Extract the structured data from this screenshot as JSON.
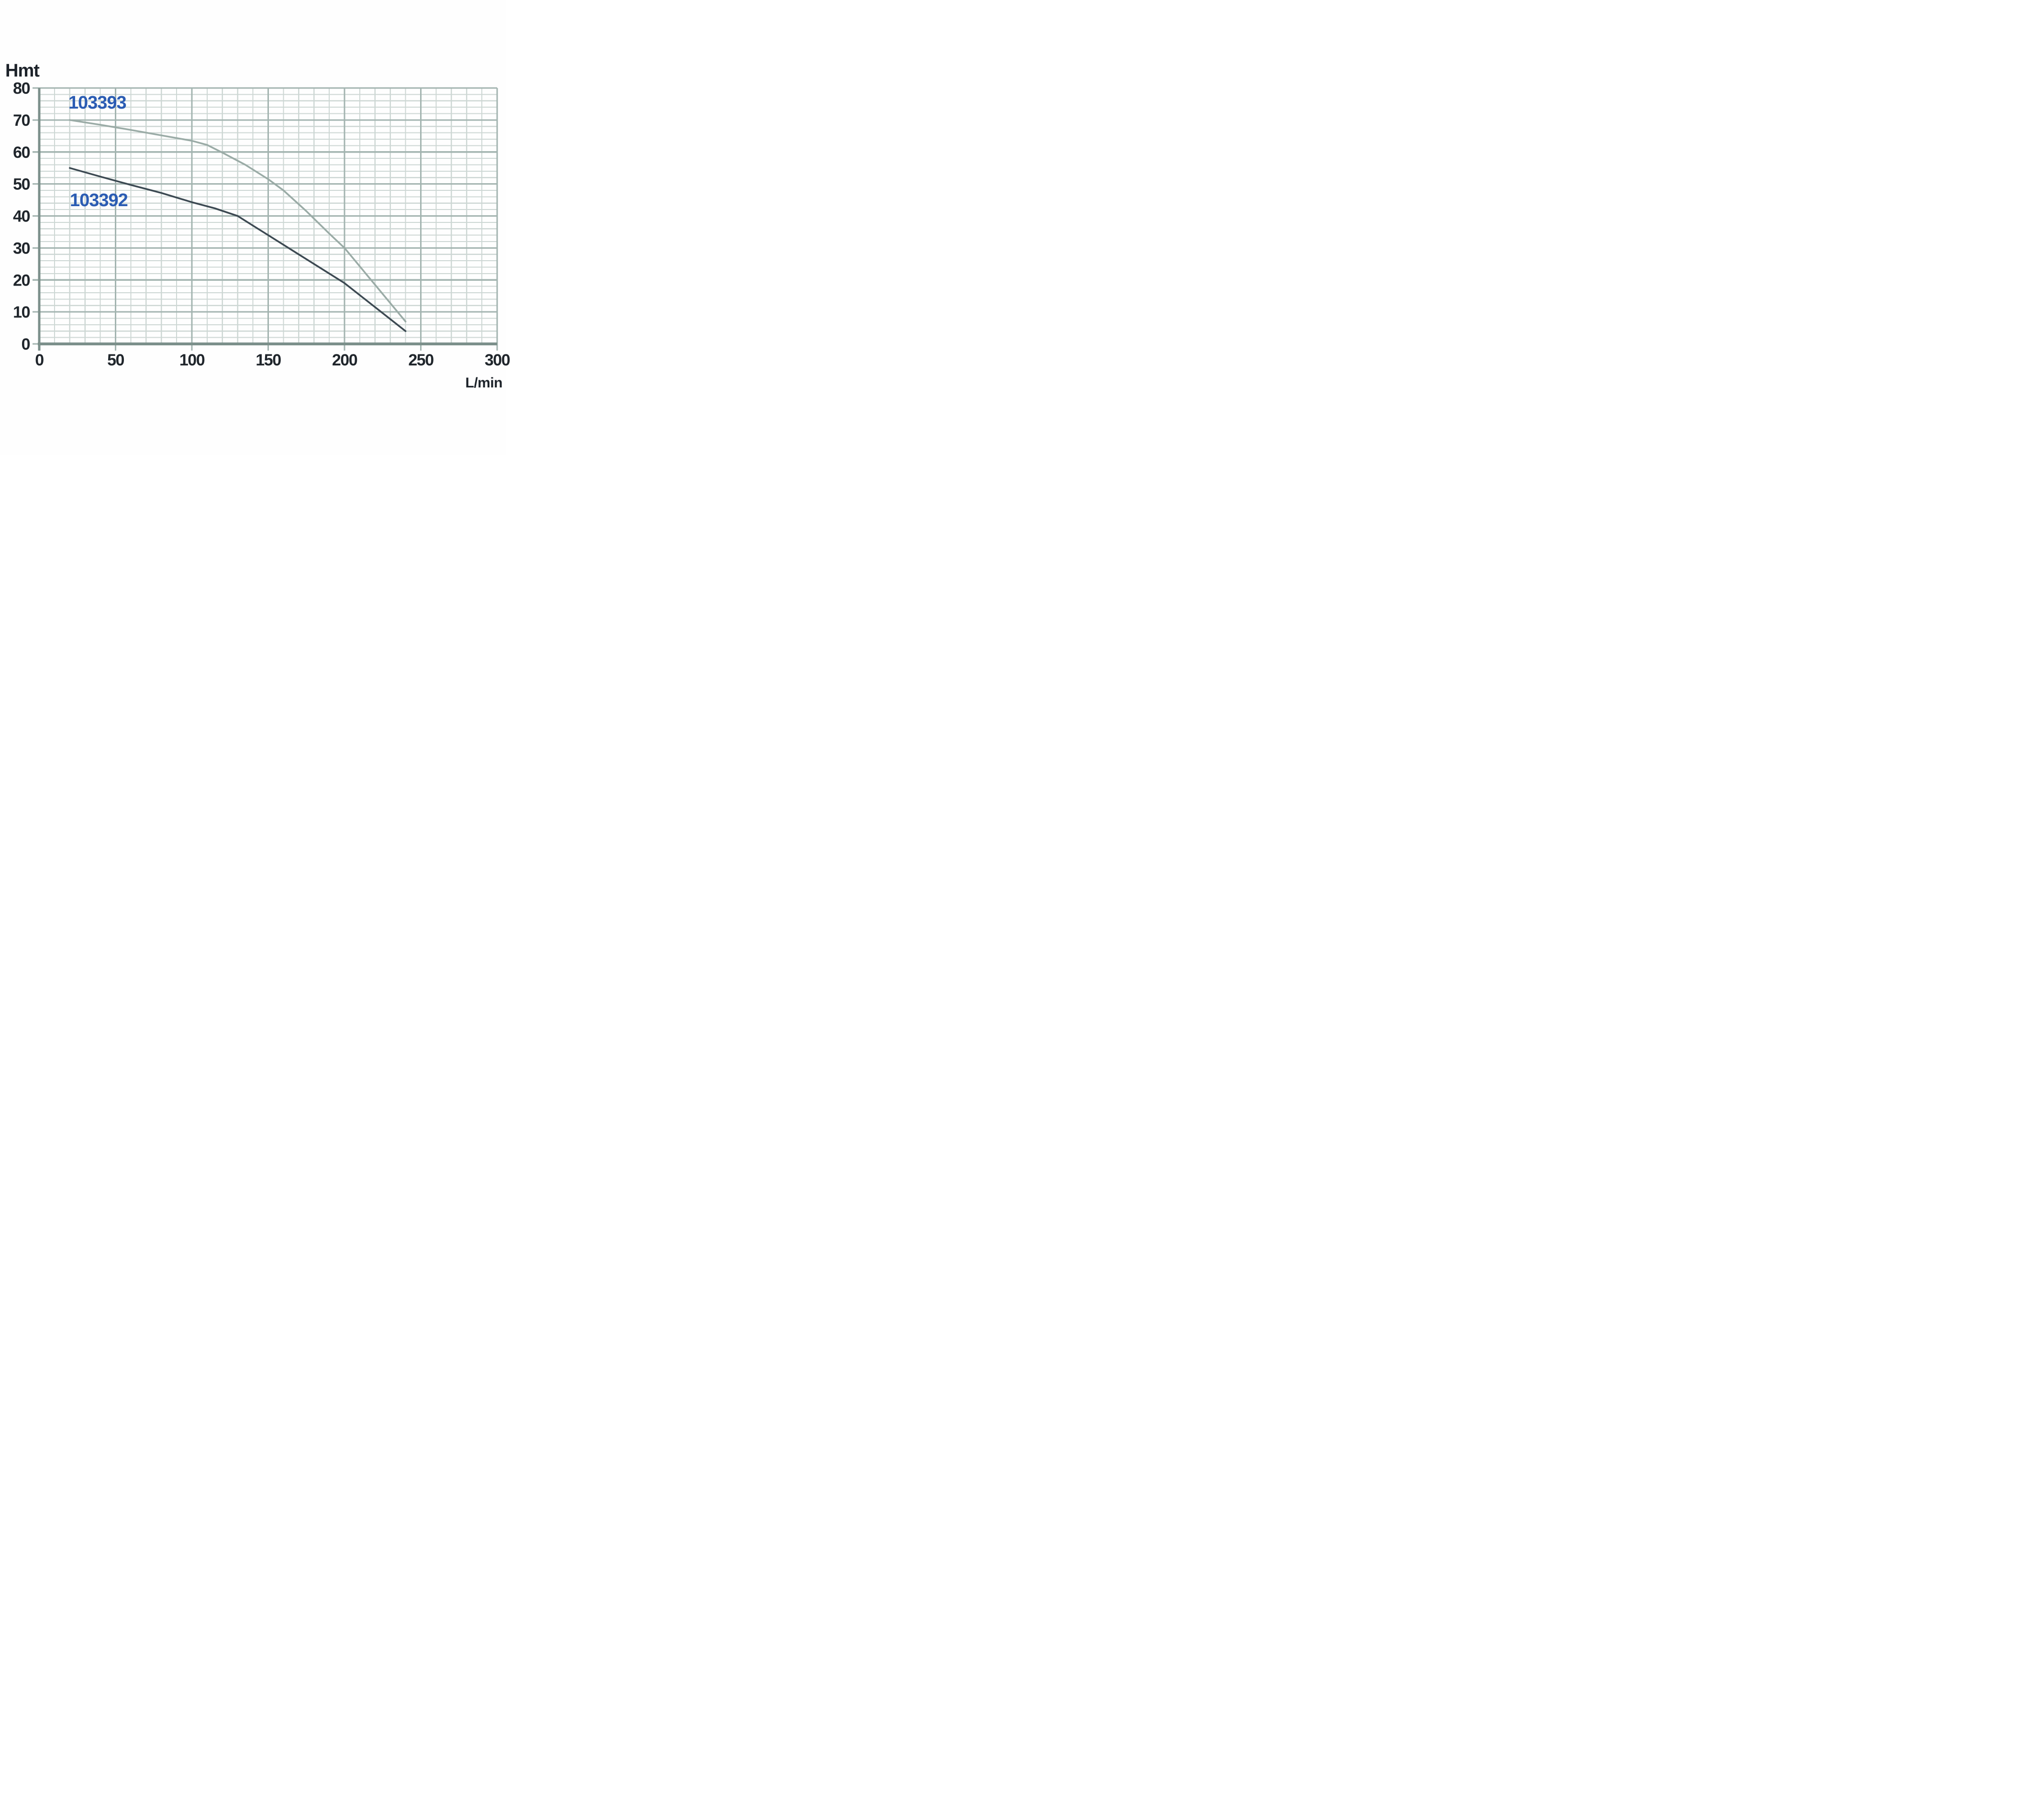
{
  "palette": {
    "grid_minor": "#cdd7d4",
    "grid_major": "#a3b4b0",
    "axis": "#7c908b",
    "tick_text": "#20262c",
    "series_label_blue": "#2b5cb3"
  },
  "chart_data": {
    "type": "line",
    "title": "",
    "xlabel": "L/min",
    "ylabel": "Hmt",
    "xlim": [
      0,
      300
    ],
    "ylim": [
      0,
      80
    ],
    "x_ticks_major": [
      0,
      50,
      100,
      150,
      200,
      250,
      300
    ],
    "x_minor_step": 10,
    "y_ticks_major": [
      0,
      10,
      20,
      30,
      40,
      50,
      60,
      70,
      80
    ],
    "y_minor_step": 2,
    "grid": true,
    "legend_position": "inline-labels",
    "series": [
      {
        "name": "103393",
        "color": "#9aaba6",
        "label_color": "#2b5cb3",
        "label_anchor": {
          "x": 38,
          "y": 75.5
        },
        "points": [
          [
            20,
            70
          ],
          [
            40,
            68.5
          ],
          [
            60,
            66.9
          ],
          [
            80,
            65.2
          ],
          [
            100,
            63.5
          ],
          [
            110,
            62.2
          ],
          [
            120,
            59.8
          ],
          [
            135,
            56
          ],
          [
            150,
            51.5
          ],
          [
            160,
            48
          ],
          [
            175,
            41.5
          ],
          [
            190,
            34.5
          ],
          [
            200,
            30
          ],
          [
            220,
            18.5
          ],
          [
            240,
            7
          ]
        ]
      },
      {
        "name": "103392",
        "color": "#3c4952",
        "label_color": "#2b5cb3",
        "label_anchor": {
          "x": 39,
          "y": 45
        },
        "points": [
          [
            20,
            55
          ],
          [
            40,
            52.3
          ],
          [
            60,
            49.7
          ],
          [
            80,
            47.2
          ],
          [
            100,
            44.3
          ],
          [
            115,
            42.4
          ],
          [
            130,
            40
          ],
          [
            140,
            37
          ],
          [
            150,
            34
          ],
          [
            170,
            28
          ],
          [
            185,
            23.5
          ],
          [
            200,
            19
          ],
          [
            220,
            11.5
          ],
          [
            240,
            4
          ]
        ]
      }
    ]
  }
}
